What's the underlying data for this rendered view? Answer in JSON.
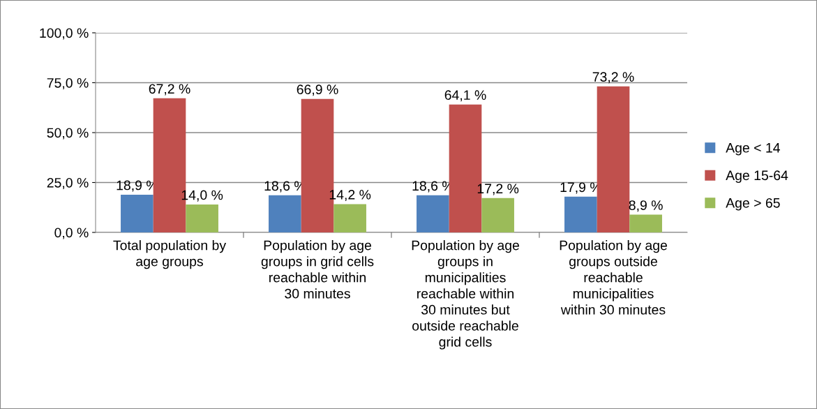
{
  "chart_data": {
    "type": "bar",
    "categories": [
      "Total population by\nage groups",
      "Population by age\ngroups in grid cells\nreachable within\n30 minutes",
      "Population by age\ngroups in\nmunicipalities\nreachable within\n30 minutes but\noutside reachable\ngrid cells",
      "Population by age\ngroups outside\nreachable\nmunicipalities\nwithin 30 minutes"
    ],
    "series": [
      {
        "name": "Age < 14",
        "color": "#4f81bd",
        "values": [
          18.9,
          18.6,
          18.6,
          17.9
        ],
        "value_labels": [
          "18,9 %",
          "18,6 %",
          "18,6 %",
          "17,9 %"
        ]
      },
      {
        "name": "Age 15-64",
        "color": "#c0504d",
        "values": [
          67.2,
          66.9,
          64.1,
          73.2
        ],
        "value_labels": [
          "67,2 %",
          "66,9 %",
          "64,1 %",
          "73,2 %"
        ]
      },
      {
        "name": "Age > 65",
        "color": "#9bbb59",
        "values": [
          14.0,
          14.2,
          17.2,
          8.9
        ],
        "value_labels": [
          "14,0 %",
          "14,2 %",
          "17,2 %",
          "8,9 %"
        ]
      }
    ],
    "ylim": [
      0,
      100
    ],
    "yticks": [
      {
        "value": 0,
        "label": "0,0 %"
      },
      {
        "value": 25,
        "label": "25,0 %"
      },
      {
        "value": 50,
        "label": "50,0 %"
      },
      {
        "value": 75,
        "label": "75,0 %"
      },
      {
        "value": 100,
        "label": "100,0 %"
      }
    ],
    "grid": "y",
    "legend": "right"
  }
}
